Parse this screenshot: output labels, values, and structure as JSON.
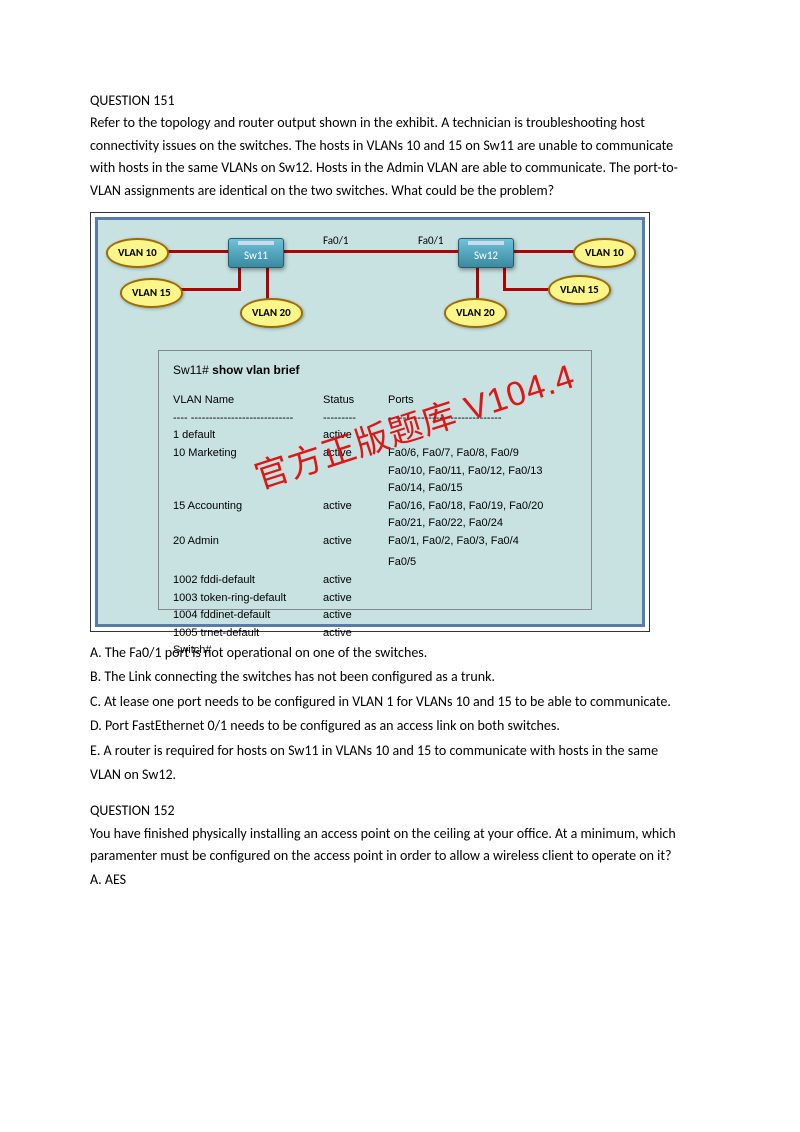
{
  "q151": {
    "title": "QUESTION 151",
    "p1": "Refer to the topology and router output shown in the exhibit. A technician is troubleshooting host",
    "p2": "connectivity issues on the switches. The hosts in VLANs 10 and 15 on Sw11 are unable to communicate",
    "p3": "with hosts in the same VLANs on Sw12. Hosts in the Admin VLAN are able to communicate. The port-to-",
    "p4": "VLAN assignments are identical on the two switches. What could be the problem?",
    "answers": {
      "a": "A. The Fa0/1 port is not operational on one of the switches.",
      "b": "B. The Link connecting the switches has not been configured as a trunk.",
      "c": "C. At lease one port needs to be configured in VLAN 1 for VLANs 10 and 15    to be able to communicate.",
      "d": "D. Port FastEthernet 0/1 needs to be configured as an access link on both switches.",
      "e": "E. A router is required for hosts on Sw11 in VLANs 10 and 15 to communicate with hosts in the same",
      "e2": "VLAN on Sw12."
    }
  },
  "exhibit": {
    "sw11": "Sw11",
    "sw12": "Sw12",
    "fa01_left": "Fa0/1",
    "fa01_right": "Fa0/1",
    "vlan10": "VLAN 10",
    "vlan15": "VLAN 15",
    "vlan20": "VLAN 20",
    "watermark": "官方正版题库 V104.4",
    "cli": {
      "prompt": "Sw11# ",
      "cmd": "show vlan brief",
      "h1": "VLAN Name",
      "h2": "Status",
      "h3": "Ports",
      "dashes1": "---- ----------------------------",
      "dashes2": "---------",
      "dashes3": "-------------------------------",
      "rows": [
        {
          "c1": "1    default",
          "c2": "active",
          "c3": ""
        },
        {
          "c1": "10  Marketing",
          "c2": "active",
          "c3": "Fa0/6, Fa0/7, Fa0/8, Fa0/9"
        },
        {
          "c1": "",
          "c2": "",
          "c3": "Fa0/10, Fa0/11, Fa0/12, Fa0/13"
        },
        {
          "c1": "",
          "c2": "",
          "c3": "Fa0/14, Fa0/15"
        },
        {
          "c1": "15  Accounting",
          "c2": "active",
          "c3": "Fa0/16, Fa0/18, Fa0/19, Fa0/20"
        },
        {
          "c1": "",
          "c2": "",
          "c3": "Fa0/21, Fa0/22, Fa0/24"
        },
        {
          "c1": "20  Admin",
          "c2": "active",
          "c3": "Fa0/1, Fa0/2, Fa0/3, Fa0/4"
        },
        {
          "c1": "",
          "c2": "",
          "c3": "Fa0/5"
        },
        {
          "c1": "1002 fddi-default",
          "c2": "active",
          "c3": ""
        },
        {
          "c1": "1003 token-ring-default",
          "c2": "active",
          "c3": ""
        },
        {
          "c1": "1004 fddinet-default",
          "c2": "active",
          "c3": ""
        },
        {
          "c1": "1005 trnet-default",
          "c2": "active",
          "c3": ""
        },
        {
          "c1": "Switch#",
          "c2": "",
          "c3": ""
        }
      ]
    }
  },
  "q152": {
    "title": "QUESTION 152",
    "p1": "You have finished physically installing an access point on the ceiling at your office. At a minimum, which",
    "p2": "paramenter must be configured on the access point in order to allow a wireless client to operate on it?",
    "answers": {
      "a": "A. AES"
    }
  },
  "colors": {
    "text": "#000000",
    "exhibit_bg": "#c8e2e2",
    "exhibit_border": "#5a7aa8",
    "wire": "#b00000",
    "bubble_fill": "#fbf68a",
    "bubble_border": "#a06a00",
    "switch_grad_top": "#6fc2d8",
    "switch_grad_bot": "#3a8aa0",
    "watermark_color": "#e00000"
  }
}
